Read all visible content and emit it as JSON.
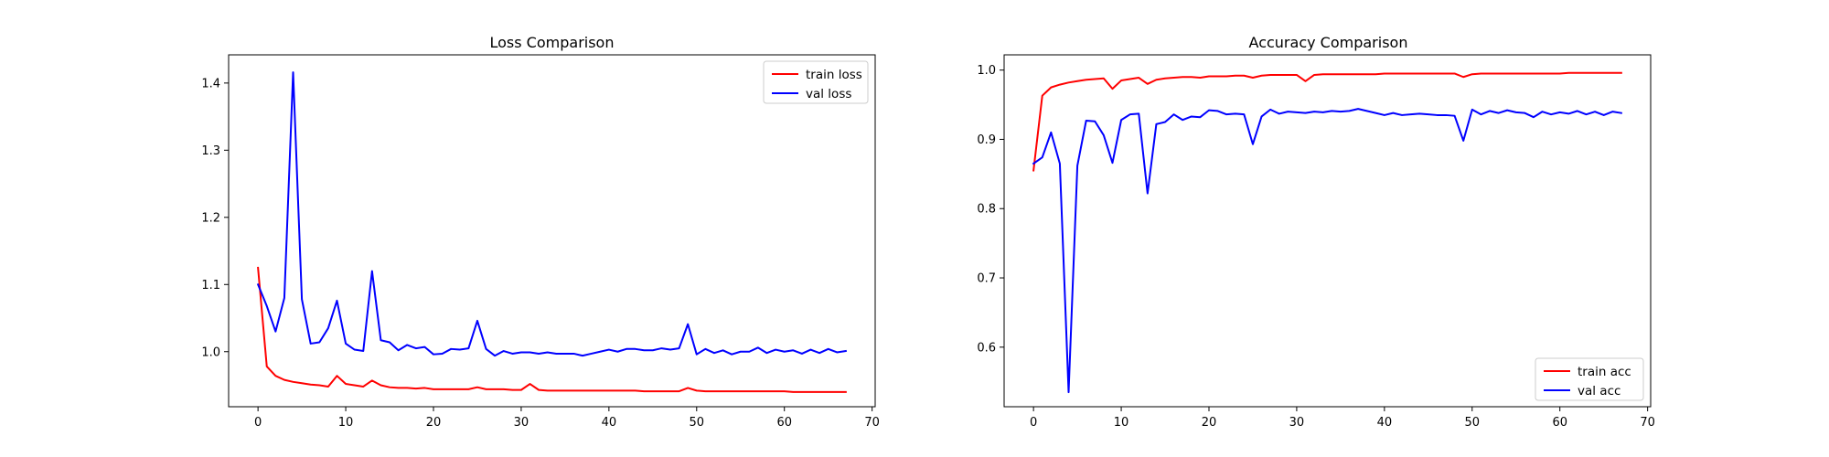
{
  "chart_data": [
    {
      "type": "line",
      "title": "Loss Comparison",
      "xlabel": "",
      "ylabel": "",
      "xlim": [
        -3.35,
        70.35
      ],
      "ylim": [
        0.918,
        1.442
      ],
      "xticks": [
        0,
        10,
        20,
        30,
        40,
        50,
        60,
        70
      ],
      "yticks": [
        1.0,
        1.1,
        1.2,
        1.3,
        1.4
      ],
      "xtick_labels": [
        "0",
        "10",
        "20",
        "30",
        "40",
        "50",
        "60",
        "70"
      ],
      "ytick_labels": [
        "1.0",
        "1.1",
        "1.2",
        "1.3",
        "1.4"
      ],
      "grid": false,
      "legend_position": "top-right",
      "x": [
        0,
        1,
        2,
        3,
        4,
        5,
        6,
        7,
        8,
        9,
        10,
        11,
        12,
        13,
        14,
        15,
        16,
        17,
        18,
        19,
        20,
        21,
        22,
        23,
        24,
        25,
        26,
        27,
        28,
        29,
        30,
        31,
        32,
        33,
        34,
        35,
        36,
        37,
        38,
        39,
        40,
        41,
        42,
        43,
        44,
        45,
        46,
        47,
        48,
        49,
        50,
        51,
        52,
        53,
        54,
        55,
        56,
        57,
        58,
        59,
        60,
        61,
        62,
        63,
        64,
        65,
        66,
        67
      ],
      "series": [
        {
          "name": "train loss",
          "color": "#ff0000",
          "values": [
            1.125,
            0.978,
            0.964,
            0.958,
            0.955,
            0.953,
            0.951,
            0.95,
            0.948,
            0.964,
            0.952,
            0.95,
            0.948,
            0.957,
            0.95,
            0.947,
            0.946,
            0.946,
            0.945,
            0.946,
            0.944,
            0.944,
            0.944,
            0.944,
            0.944,
            0.947,
            0.944,
            0.944,
            0.944,
            0.943,
            0.943,
            0.952,
            0.943,
            0.942,
            0.942,
            0.942,
            0.942,
            0.942,
            0.942,
            0.942,
            0.942,
            0.942,
            0.942,
            0.942,
            0.941,
            0.941,
            0.941,
            0.941,
            0.941,
            0.946,
            0.942,
            0.941,
            0.941,
            0.941,
            0.941,
            0.941,
            0.941,
            0.941,
            0.941,
            0.941,
            0.941,
            0.94,
            0.94,
            0.94,
            0.94,
            0.94,
            0.94,
            0.94
          ]
        },
        {
          "name": "val loss",
          "color": "#0000ff",
          "values": [
            1.1,
            1.068,
            1.03,
            1.08,
            1.416,
            1.078,
            1.012,
            1.014,
            1.035,
            1.076,
            1.012,
            1.003,
            1.001,
            1.12,
            1.017,
            1.014,
            1.002,
            1.01,
            1.005,
            1.007,
            0.996,
            0.997,
            1.004,
            1.003,
            1.005,
            1.046,
            1.004,
            0.994,
            1.001,
            0.997,
            0.999,
            0.999,
            0.997,
            0.999,
            0.997,
            0.997,
            0.997,
            0.994,
            0.997,
            1.0,
            1.003,
            1.0,
            1.004,
            1.004,
            1.002,
            1.002,
            1.005,
            1.003,
            1.005,
            1.041,
            0.996,
            1.004,
            0.998,
            1.002,
            0.996,
            1.0,
            1.0,
            1.006,
            0.998,
            1.003,
            1.0,
            1.002,
            0.997,
            1.003,
            0.998,
            1.004,
            0.999,
            1.001
          ]
        }
      ]
    },
    {
      "type": "line",
      "title": "Accuracy Comparison",
      "xlabel": "",
      "ylabel": "",
      "xlim": [
        -3.35,
        70.35
      ],
      "ylim": [
        0.514,
        1.022
      ],
      "xticks": [
        0,
        10,
        20,
        30,
        40,
        50,
        60,
        70
      ],
      "yticks": [
        0.6,
        0.7,
        0.8,
        0.9,
        1.0
      ],
      "xtick_labels": [
        "0",
        "10",
        "20",
        "30",
        "40",
        "50",
        "60",
        "70"
      ],
      "ytick_labels": [
        "0.6",
        "0.7",
        "0.8",
        "0.9",
        "1.0"
      ],
      "grid": false,
      "legend_position": "bottom-right",
      "x": [
        0,
        1,
        2,
        3,
        4,
        5,
        6,
        7,
        8,
        9,
        10,
        11,
        12,
        13,
        14,
        15,
        16,
        17,
        18,
        19,
        20,
        21,
        22,
        23,
        24,
        25,
        26,
        27,
        28,
        29,
        30,
        31,
        32,
        33,
        34,
        35,
        36,
        37,
        38,
        39,
        40,
        41,
        42,
        43,
        44,
        45,
        46,
        47,
        48,
        49,
        50,
        51,
        52,
        53,
        54,
        55,
        56,
        57,
        58,
        59,
        60,
        61,
        62,
        63,
        64,
        65,
        66,
        67
      ],
      "series": [
        {
          "name": "train acc",
          "color": "#ff0000",
          "values": [
            0.855,
            0.963,
            0.975,
            0.979,
            0.982,
            0.984,
            0.986,
            0.987,
            0.988,
            0.973,
            0.985,
            0.987,
            0.989,
            0.98,
            0.986,
            0.988,
            0.989,
            0.99,
            0.99,
            0.989,
            0.991,
            0.991,
            0.991,
            0.992,
            0.992,
            0.989,
            0.992,
            0.993,
            0.993,
            0.993,
            0.993,
            0.984,
            0.993,
            0.994,
            0.994,
            0.994,
            0.994,
            0.994,
            0.994,
            0.994,
            0.995,
            0.995,
            0.995,
            0.995,
            0.995,
            0.995,
            0.995,
            0.995,
            0.995,
            0.99,
            0.994,
            0.995,
            0.995,
            0.995,
            0.995,
            0.995,
            0.995,
            0.995,
            0.995,
            0.995,
            0.995,
            0.996,
            0.996,
            0.996,
            0.996,
            0.996,
            0.996,
            0.996
          ]
        },
        {
          "name": "val acc",
          "color": "#0000ff",
          "values": [
            0.865,
            0.874,
            0.91,
            0.865,
            0.535,
            0.862,
            0.927,
            0.926,
            0.906,
            0.866,
            0.928,
            0.936,
            0.937,
            0.822,
            0.922,
            0.925,
            0.936,
            0.928,
            0.933,
            0.932,
            0.942,
            0.941,
            0.936,
            0.937,
            0.936,
            0.893,
            0.933,
            0.943,
            0.937,
            0.94,
            0.939,
            0.938,
            0.94,
            0.939,
            0.941,
            0.94,
            0.941,
            0.944,
            0.941,
            0.938,
            0.935,
            0.938,
            0.935,
            0.936,
            0.937,
            0.936,
            0.935,
            0.935,
            0.934,
            0.898,
            0.943,
            0.936,
            0.941,
            0.938,
            0.942,
            0.939,
            0.938,
            0.932,
            0.94,
            0.936,
            0.939,
            0.937,
            0.941,
            0.936,
            0.94,
            0.935,
            0.94,
            0.938
          ]
        }
      ]
    }
  ]
}
